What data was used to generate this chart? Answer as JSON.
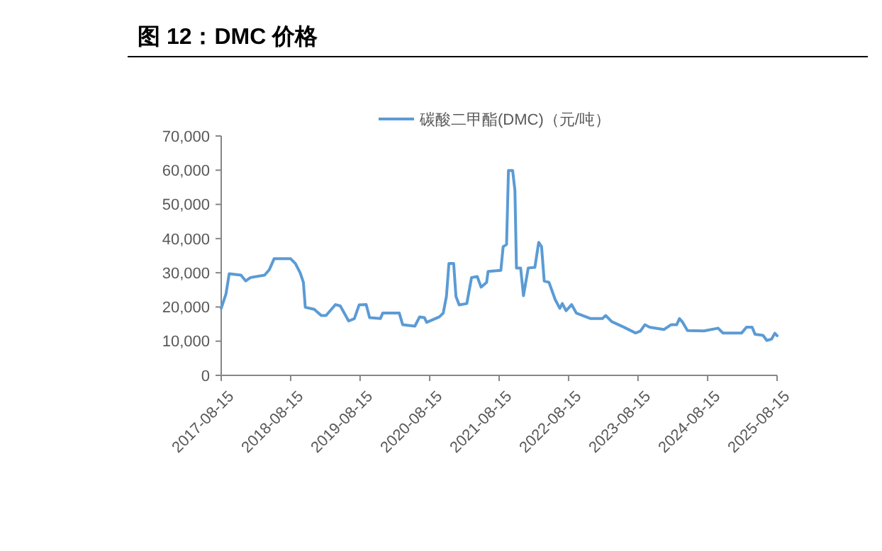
{
  "chart_data": {
    "type": "line",
    "title": "图 12：DMC 价格",
    "x": [
      "2017-08-15",
      "2017-09-09",
      "2017-09-26",
      "2017-11-27",
      "2017-12-22",
      "2018-01-16",
      "2018-03-31",
      "2018-04-25",
      "2018-05-20",
      "2018-08-15",
      "2018-09-09",
      "2018-10-04",
      "2018-10-21",
      "2018-10-31",
      "2018-12-17",
      "2019-01-23",
      "2019-02-17",
      "2019-04-08",
      "2019-05-03",
      "2019-06-16",
      "2019-07-16",
      "2019-08-10",
      "2019-09-16",
      "2019-10-04",
      "2019-11-30",
      "2019-12-12",
      "2020-03-08",
      "2020-03-26",
      "2020-05-29",
      "2020-06-23",
      "2020-07-18",
      "2020-07-30",
      "2020-10-05",
      "2020-10-25",
      "2020-11-11",
      "2020-11-24",
      "2020-12-19",
      "2020-12-31",
      "2021-01-17",
      "2021-02-26",
      "2021-03-23",
      "2021-04-22",
      "2021-05-12",
      "2021-06-10",
      "2021-06-18",
      "2021-08-24",
      "2021-09-05",
      "2021-09-23",
      "2021-10-03",
      "2021-10-25",
      "2021-11-06",
      "2021-11-14",
      "2021-12-06",
      "2021-12-21",
      "2022-01-15",
      "2022-02-19",
      "2022-03-11",
      "2022-03-26",
      "2022-04-09",
      "2022-05-04",
      "2022-06-06",
      "2022-06-30",
      "2022-07-13",
      "2022-08-02",
      "2022-08-31",
      "2022-09-25",
      "2022-12-09",
      "2023-02-09",
      "2023-02-26",
      "2023-03-30",
      "2023-06-01",
      "2023-08-02",
      "2023-08-27",
      "2023-09-20",
      "2023-10-15",
      "2023-12-29",
      "2024-02-04",
      "2024-03-05",
      "2024-03-20",
      "2024-04-06",
      "2024-05-01",
      "2024-07-27",
      "2024-10-09",
      "2024-11-03",
      "2025-02-10",
      "2025-03-07",
      "2025-04-06",
      "2025-04-21",
      "2025-06-02",
      "2025-06-22",
      "2025-07-17",
      "2025-08-03",
      "2025-08-15"
    ],
    "series": [
      {
        "name": "碳酸二甲酯(DMC)（元/吨）",
        "color": "#5b9bd5",
        "values": [
          19600,
          23800,
          29700,
          29300,
          27600,
          28600,
          29300,
          30900,
          34100,
          34100,
          32700,
          30000,
          27200,
          19900,
          19300,
          17500,
          17500,
          20700,
          20300,
          15900,
          16600,
          20600,
          20700,
          16900,
          16600,
          18200,
          18200,
          14800,
          14400,
          17100,
          16900,
          15500,
          17100,
          18200,
          23100,
          32700,
          32700,
          23100,
          20600,
          21000,
          28600,
          28900,
          25800,
          27200,
          30400,
          30700,
          37600,
          38300,
          59900,
          59900,
          54100,
          31400,
          31400,
          23300,
          31400,
          31600,
          38900,
          37600,
          27600,
          27200,
          22100,
          19600,
          21000,
          18900,
          20700,
          18200,
          16600,
          16600,
          17500,
          15700,
          14100,
          12400,
          12900,
          14800,
          14100,
          13400,
          14800,
          14800,
          16600,
          15500,
          13100,
          13000,
          13800,
          12400,
          12400,
          14100,
          14100,
          12000,
          11700,
          10200,
          10600,
          12300,
          11600
        ]
      }
    ],
    "xlim": [
      "2017-08-15",
      "2025-08-15"
    ],
    "xticks": [
      {
        "value": "2017-08-15",
        "label": "2017-08-15"
      },
      {
        "value": "2018-08-15",
        "label": "2018-08-15"
      },
      {
        "value": "2019-08-15",
        "label": "2019-08-15"
      },
      {
        "value": "2020-08-15",
        "label": "2020-08-15"
      },
      {
        "value": "2021-08-15",
        "label": "2021-08-15"
      },
      {
        "value": "2022-08-15",
        "label": "2022-08-15"
      },
      {
        "value": "2023-08-15",
        "label": "2023-08-15"
      },
      {
        "value": "2024-08-15",
        "label": "2024-08-15"
      },
      {
        "value": "2025-08-15",
        "label": "2025-08-15"
      }
    ],
    "ylim": [
      0,
      70000
    ],
    "yticks": [
      {
        "value": 0,
        "label": "0"
      },
      {
        "value": 10000,
        "label": "10,000"
      },
      {
        "value": 20000,
        "label": "20,000"
      },
      {
        "value": 30000,
        "label": "30,000"
      },
      {
        "value": 40000,
        "label": "40,000"
      },
      {
        "value": 50000,
        "label": "50,000"
      },
      {
        "value": 60000,
        "label": "60,000"
      },
      {
        "value": 70000,
        "label": "70,000"
      }
    ],
    "grid": false,
    "legend": "top",
    "marker": "none",
    "line_style": "solid"
  }
}
